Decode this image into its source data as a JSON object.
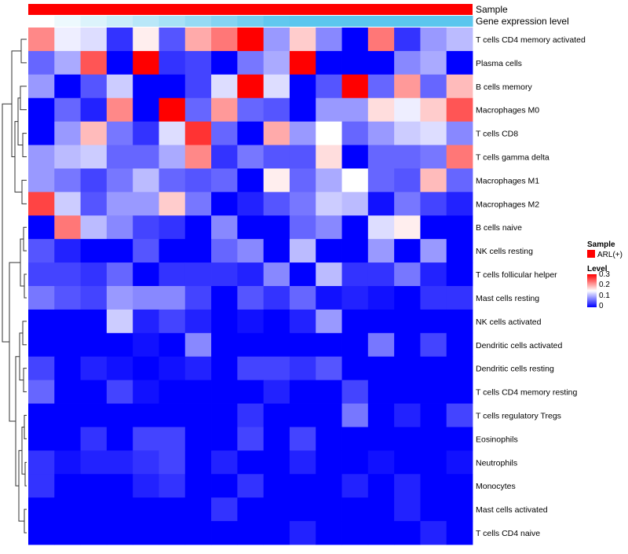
{
  "chart_data": {
    "type": "heatmap",
    "title": "",
    "annotation_tracks": [
      {
        "name": "Sample",
        "color": "#ff0000"
      },
      {
        "name": "Gene expression level",
        "gradient": [
          "#ffffff",
          "#5bc6ee"
        ]
      }
    ],
    "rows": [
      "T cells CD4 memory activated",
      "Plasma cells",
      "B cells memory",
      "Macrophages M0",
      "T cells CD8",
      "T cells gamma delta",
      "Macrophages M1",
      "Macrophages M2",
      "B cells naive",
      "NK cells resting",
      "T cells follicular helper",
      "Mast cells resting",
      "NK cells activated",
      "Dendritic cells activated",
      "Dendritic cells resting",
      "T cells CD4 memory resting",
      "T cells regulatory  Tregs",
      "Eosinophils",
      "Neutrophils",
      "Monocytes",
      "Mast cells activated",
      "T cells CD4 naive"
    ],
    "n_columns": 17,
    "values": [
      [
        0.22,
        0.14,
        0.13,
        0.03,
        0.16,
        0.05,
        0.2,
        0.23,
        0.3,
        0.09,
        0.18,
        0.08,
        0.0,
        0.23,
        0.03,
        0.09,
        0.11
      ],
      [
        0.06,
        0.1,
        0.25,
        0.0,
        0.3,
        0.03,
        0.04,
        0.0,
        0.07,
        0.1,
        0.3,
        0.0,
        0.0,
        0.0,
        0.08,
        0.1,
        0.0
      ],
      [
        0.09,
        0.0,
        0.05,
        0.12,
        0.0,
        0.0,
        0.04,
        0.13,
        0.3,
        0.13,
        0.0,
        0.05,
        0.3,
        0.06,
        0.21,
        0.06,
        0.19
      ],
      [
        0.0,
        0.06,
        0.02,
        0.22,
        0.0,
        0.3,
        0.06,
        0.21,
        0.06,
        0.05,
        0.0,
        0.09,
        0.09,
        0.17,
        0.14,
        0.18,
        0.25
      ],
      [
        0.0,
        0.09,
        0.19,
        0.07,
        0.03,
        0.13,
        0.27,
        0.06,
        0.0,
        0.2,
        0.09,
        0.15,
        0.06,
        0.09,
        0.12,
        0.13,
        0.08
      ],
      [
        0.09,
        0.11,
        0.12,
        0.06,
        0.06,
        0.1,
        0.22,
        0.03,
        0.07,
        0.05,
        0.05,
        0.17,
        0.0,
        0.06,
        0.06,
        0.07,
        0.23
      ],
      [
        0.09,
        0.07,
        0.04,
        0.07,
        0.11,
        0.06,
        0.05,
        0.06,
        0.0,
        0.16,
        0.06,
        0.1,
        0.15,
        0.06,
        0.05,
        0.19,
        0.06
      ],
      [
        0.26,
        0.12,
        0.05,
        0.09,
        0.09,
        0.18,
        0.07,
        0.0,
        0.02,
        0.05,
        0.07,
        0.12,
        0.11,
        0.01,
        0.07,
        0.04,
        0.02
      ],
      [
        0.0,
        0.23,
        0.11,
        0.08,
        0.04,
        0.03,
        0.0,
        0.08,
        0.0,
        0.0,
        0.06,
        0.08,
        0.0,
        0.13,
        0.16,
        0.0,
        0.0
      ],
      [
        0.05,
        0.02,
        0.0,
        0.0,
        0.05,
        0.0,
        0.0,
        0.06,
        0.08,
        0.0,
        0.11,
        0.0,
        0.0,
        0.09,
        0.0,
        0.09,
        0.0
      ],
      [
        0.04,
        0.04,
        0.03,
        0.06,
        0.0,
        0.03,
        0.03,
        0.03,
        0.02,
        0.08,
        0.0,
        0.11,
        0.03,
        0.03,
        0.07,
        0.02,
        0.0
      ],
      [
        0.07,
        0.05,
        0.04,
        0.09,
        0.08,
        0.08,
        0.04,
        0.0,
        0.05,
        0.03,
        0.06,
        0.01,
        0.02,
        0.01,
        0.0,
        0.03,
        0.03
      ],
      [
        0.0,
        0.0,
        0.0,
        0.12,
        0.02,
        0.04,
        0.02,
        0.0,
        0.01,
        0.0,
        0.02,
        0.09,
        0.0,
        0.0,
        0.0,
        0.0,
        0.0
      ],
      [
        0.0,
        0.0,
        0.0,
        0.0,
        0.01,
        0.0,
        0.08,
        0.0,
        0.0,
        0.0,
        0.0,
        0.0,
        0.0,
        0.07,
        0.0,
        0.04,
        0.0
      ],
      [
        0.04,
        0.0,
        0.02,
        0.01,
        0.0,
        0.01,
        0.02,
        0.0,
        0.04,
        0.04,
        0.03,
        0.05,
        0.0,
        0.0,
        0.0,
        0.0,
        0.0
      ],
      [
        0.06,
        0.0,
        0.0,
        0.04,
        0.01,
        0.0,
        0.0,
        0.0,
        0.0,
        0.02,
        0.0,
        0.0,
        0.04,
        0.0,
        0.0,
        0.0,
        0.0
      ],
      [
        0.0,
        0.0,
        0.0,
        0.0,
        0.0,
        0.0,
        0.0,
        0.0,
        0.03,
        0.0,
        0.0,
        0.0,
        0.07,
        0.0,
        0.02,
        0.0,
        0.04
      ],
      [
        0.0,
        0.0,
        0.03,
        0.0,
        0.04,
        0.04,
        0.0,
        0.0,
        0.04,
        0.0,
        0.04,
        0.0,
        0.0,
        0.0,
        0.0,
        0.0,
        0.0
      ],
      [
        0.03,
        0.01,
        0.02,
        0.02,
        0.03,
        0.04,
        0.0,
        0.02,
        0.0,
        0.0,
        0.02,
        0.0,
        0.0,
        0.01,
        0.0,
        0.0,
        0.01
      ],
      [
        0.03,
        0.0,
        0.0,
        0.0,
        0.02,
        0.03,
        0.0,
        0.0,
        0.03,
        0.0,
        0.0,
        0.0,
        0.02,
        0.0,
        0.02,
        0.0,
        0.0
      ],
      [
        0.0,
        0.0,
        0.0,
        0.0,
        0.0,
        0.0,
        0.0,
        0.03,
        0.0,
        0.0,
        0.0,
        0.0,
        0.0,
        0.0,
        0.02,
        0.0,
        0.0
      ],
      [
        0.0,
        0.0,
        0.0,
        0.0,
        0.0,
        0.0,
        0.0,
        0.0,
        0.0,
        0.0,
        0.02,
        0.0,
        0.0,
        0.0,
        0.0,
        0.02,
        0.0
      ]
    ],
    "color_scale": {
      "min": 0,
      "max": 0.3,
      "colors": [
        "#0000ff",
        "#ffffff",
        "#ff0000"
      ],
      "midpoint": 0.15
    },
    "legend": {
      "sample_title": "Sample",
      "sample_entry": "ARL(+)",
      "sample_color": "#ff0000",
      "level_title": "Level",
      "level_ticks": [
        "0.3",
        "0.2",
        "0.1",
        "0"
      ]
    },
    "dendrogram": "rows, left side",
    "xlabel": "",
    "ylabel": ""
  }
}
